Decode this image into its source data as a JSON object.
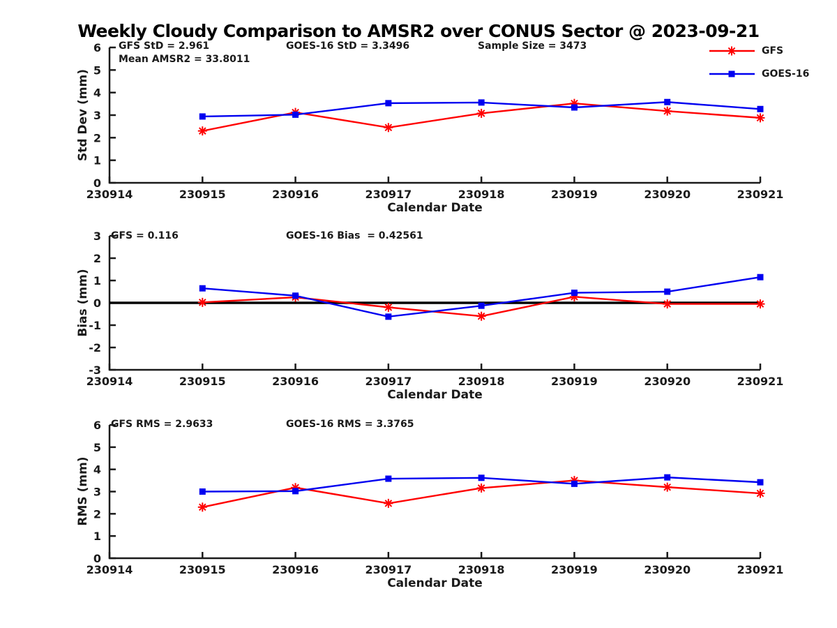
{
  "title": "Weekly Cloudy Comparison to AMSR2 over CONUS Sector @ 2023-09-21",
  "colors": {
    "gfs": "#ff0000",
    "goes16": "#0000f0",
    "axis": "#1a1a1a",
    "zero_line": "#000000"
  },
  "legend": {
    "items": [
      {
        "label": "GFS"
      },
      {
        "label": "GOES-16"
      }
    ]
  },
  "chart_data": [
    {
      "type": "line",
      "panel": "std_dev",
      "ylabel": "Std Dev (mm)",
      "xlabel": "Calendar Date",
      "ylim": [
        0,
        6
      ],
      "yticks": [
        0,
        1,
        2,
        3,
        4,
        5,
        6
      ],
      "xlim": [
        0,
        7
      ],
      "xtick_labels": [
        "230914",
        "230915",
        "230916",
        "230917",
        "230918",
        "230919",
        "230920",
        "230921"
      ],
      "x": [
        1,
        2,
        3,
        4,
        5,
        6,
        7
      ],
      "zero_line": false,
      "annotations": {
        "left": "GFS StD = 2.961",
        "left2": "Mean AMSR2 = 33.8011",
        "mid": "GOES-16 StD = 3.3496",
        "right": "Sample Size = 3473"
      },
      "series": [
        {
          "name": "GFS",
          "color": "#ff0000",
          "marker": "star",
          "values": [
            2.3,
            3.12,
            2.45,
            3.08,
            3.52,
            3.18,
            2.88
          ]
        },
        {
          "name": "GOES-16",
          "color": "#0000f0",
          "marker": "square",
          "values": [
            2.94,
            3.02,
            3.53,
            3.56,
            3.34,
            3.58,
            3.27
          ]
        }
      ]
    },
    {
      "type": "line",
      "panel": "bias",
      "ylabel": "Bias (mm)",
      "xlabel": "Calendar Date",
      "ylim": [
        -3,
        3
      ],
      "yticks": [
        -3,
        -2,
        -1,
        0,
        1,
        2,
        3
      ],
      "xlim": [
        0,
        7
      ],
      "xtick_labels": [
        "230914",
        "230915",
        "230916",
        "230917",
        "230918",
        "230919",
        "230920",
        "230921"
      ],
      "x": [
        1,
        2,
        3,
        4,
        5,
        6,
        7
      ],
      "zero_line": true,
      "annotations": {
        "left": "GFS = 0.116",
        "mid": "GOES-16 Bias  = 0.42561"
      },
      "series": [
        {
          "name": "GFS",
          "color": "#ff0000",
          "marker": "star",
          "values": [
            0.02,
            0.25,
            -0.2,
            -0.6,
            0.27,
            -0.05,
            -0.05
          ]
        },
        {
          "name": "GOES-16",
          "color": "#0000f0",
          "marker": "square",
          "values": [
            0.65,
            0.32,
            -0.62,
            -0.13,
            0.45,
            0.5,
            1.15
          ]
        }
      ]
    },
    {
      "type": "line",
      "panel": "rms",
      "ylabel": "RMS (mm)",
      "xlabel": "Calendar Date",
      "ylim": [
        0,
        6
      ],
      "yticks": [
        0,
        1,
        2,
        3,
        4,
        5,
        6
      ],
      "xlim": [
        0,
        7
      ],
      "xtick_labels": [
        "230914",
        "230915",
        "230916",
        "230917",
        "230918",
        "230919",
        "230920",
        "230921"
      ],
      "x": [
        1,
        2,
        3,
        4,
        5,
        6,
        7
      ],
      "zero_line": false,
      "annotations": {
        "left": "GFS RMS = 2.9633",
        "mid": "GOES-16 RMS = 3.3765"
      },
      "series": [
        {
          "name": "GFS",
          "color": "#ff0000",
          "marker": "star",
          "values": [
            2.3,
            3.18,
            2.47,
            3.16,
            3.5,
            3.2,
            2.92
          ]
        },
        {
          "name": "GOES-16",
          "color": "#0000f0",
          "marker": "square",
          "values": [
            3.0,
            3.02,
            3.58,
            3.62,
            3.35,
            3.64,
            3.42
          ]
        }
      ]
    }
  ]
}
